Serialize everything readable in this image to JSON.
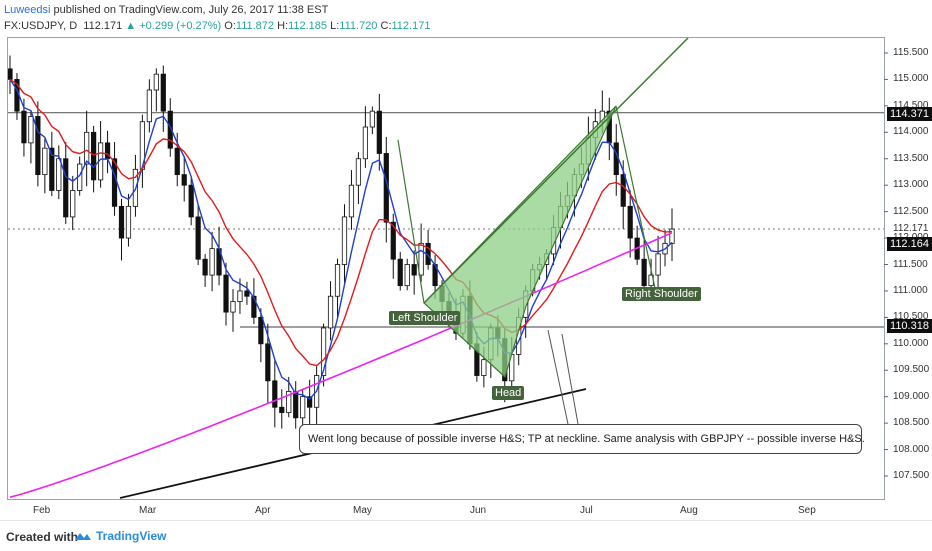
{
  "header": {
    "author": "Luweedsi",
    "published": "published on TradingView.com, July 26, 2017 11:38 EST",
    "symbol": "FX:USDJPY, D",
    "last": "112.171",
    "change": "+0.299 (+0.27%)",
    "o_label": "O:",
    "o_val": "111.872",
    "h_label": "H:",
    "h_val": "112.185",
    "l_label": "L:",
    "l_val": "111.720",
    "c_label": "C:",
    "c_val": "112.171"
  },
  "annotation": {
    "text": "Went long because of possible inverse H&S; TP at neckline. Same analysis with GBPJPY -- possible inverse H&S."
  },
  "labels": {
    "left_shoulder": "Left Shoulder",
    "head": "Head",
    "right_shoulder": "Right Shoulder"
  },
  "price_tags": {
    "upper_level": "114.371",
    "current_dotted": "112.171",
    "current_price": "112.164",
    "neckline": "110.318"
  },
  "footer": {
    "created_with": "Created with",
    "brand": "TradingView"
  },
  "colors": {
    "ma_blue": "#1f3fd1",
    "ma_red": "#e21b1b",
    "ma_magenta": "#ee22ee",
    "wedge_fill": "#8fcf86",
    "wedge_line": "#3d7a33",
    "candle": "#111111"
  },
  "chart_data": {
    "type": "candlestick",
    "title": "",
    "xlabel": "",
    "ylabel": "",
    "ylim": [
      107.0,
      115.85
    ],
    "y_ticks": [
      "115.500",
      "115.000",
      "114.500",
      "114.000",
      "113.500",
      "113.000",
      "112.500",
      "112.000",
      "111.500",
      "111.000",
      "110.500",
      "110.000",
      "109.500",
      "109.000",
      "108.500",
      "108.000",
      "107.500"
    ],
    "x_ticks": [
      "Feb",
      "Mar",
      "Apr",
      "May",
      "Jun",
      "Jul",
      "Aug",
      "Sep"
    ],
    "horizontal_levels": [
      114.371,
      112.171,
      110.318
    ],
    "close_series": [
      115.0,
      114.4,
      113.8,
      114.3,
      113.2,
      113.7,
      112.9,
      113.5,
      112.4,
      112.9,
      113.4,
      114.0,
      113.1,
      113.8,
      113.5,
      112.6,
      112.0,
      112.6,
      113.3,
      114.2,
      114.8,
      115.1,
      114.4,
      113.7,
      113.2,
      113.0,
      112.4,
      111.6,
      111.3,
      111.8,
      111.3,
      110.6,
      110.8,
      111.0,
      110.9,
      110.5,
      110.0,
      109.3,
      108.8,
      108.7,
      109.1,
      108.6,
      109.0,
      108.8,
      109.4,
      110.3,
      110.9,
      111.5,
      112.4,
      113.0,
      113.5,
      114.1,
      114.4,
      113.6,
      112.3,
      111.6,
      111.1,
      111.5,
      111.3,
      111.9,
      111.5,
      111.1,
      110.8,
      110.5,
      110.2,
      110.9,
      110.0,
      109.4,
      109.7,
      110.3,
      110.1,
      109.3,
      109.8,
      110.5,
      111.0,
      111.4,
      111.5,
      111.7,
      112.2,
      112.6,
      112.8,
      113.2,
      113.4,
      113.9,
      114.2,
      114.4,
      113.8,
      113.2,
      112.6,
      112.0,
      111.6,
      111.1,
      111.3,
      111.7,
      111.9,
      112.171
    ],
    "series": [
      {
        "name": "",
        "type": "line",
        "role": "fast-ma"
      },
      {
        "name": "",
        "type": "line",
        "role": "slow-ma"
      },
      {
        "name": "",
        "type": "line",
        "role": "long-ma"
      }
    ],
    "pattern": {
      "name": "inverse head and shoulders",
      "left_shoulder": 110.8,
      "head": 109.3,
      "right_shoulder": 111.1,
      "neckline": 110.318
    },
    "grid": false,
    "legend": "none"
  }
}
